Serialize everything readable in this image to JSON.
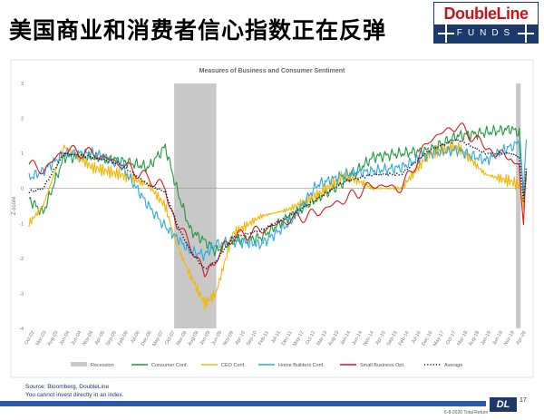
{
  "slide": {
    "title": "美国商业和消费者信心指数正在反弹",
    "source": "Source: Bloomberg, DoubleLine",
    "disclaimer": "You cannot invest directly in an index.",
    "footer_text": "6-8-2020 Total Return",
    "page": "17"
  },
  "logo": {
    "top": "DoubleLine",
    "bottom": "FUNDS"
  },
  "colors": {
    "recession": "#c8c8c8",
    "consumer": "#1e9a3c",
    "ceo": "#f2b705",
    "homebuilders": "#2aa9e0",
    "smallbiz": "#d7191c",
    "average": "#1a1a3a"
  },
  "chart_data": {
    "type": "line",
    "title": "Measures of Business and Consumer Sentiment",
    "ylabel": "Z-score",
    "xlabel": "",
    "ylim": [
      -4,
      3
    ],
    "yticks": [
      3,
      2,
      1,
      0,
      -1,
      -2,
      -3,
      -4
    ],
    "xlim": [
      2002.75,
      2020.5
    ],
    "grid": false,
    "legend_position": "bottom",
    "xtick_labels": [
      "Oct-02",
      "Mar-03",
      "Aug-03",
      "Jan-04",
      "Jun-04",
      "Nov-04",
      "Apr-05",
      "Sep-05",
      "Feb-06",
      "Jul-06",
      "Dec-06",
      "May-07",
      "Oct-07",
      "Mar-08",
      "Aug-08",
      "Jan-09",
      "Jun-09",
      "Nov-09",
      "Apr-10",
      "Sep-10",
      "Feb-11",
      "Jul-11",
      "Dec-11",
      "May-12",
      "Oct-12",
      "Mar-13",
      "Aug-13",
      "Jan-14",
      "Jun-14",
      "Nov-14",
      "Apr-15",
      "Sep-15",
      "Feb-16",
      "Jul-16",
      "Dec-16",
      "May-17",
      "Oct-17",
      "Mar-18",
      "Aug-18",
      "Jan-19",
      "Jun-19",
      "Nov-19",
      "Apr-20"
    ],
    "recessions": [
      [
        "2007-12",
        "2009-06"
      ],
      [
        "2020-02",
        "2020-04"
      ]
    ],
    "series": [
      {
        "name": "Recession"
      },
      {
        "name": "Consumer Conf.",
        "x": [
          2002.75,
          2003.25,
          2004.0,
          2005.0,
          2006.0,
          2007.0,
          2007.6,
          2008.0,
          2008.5,
          2009.0,
          2009.4,
          2010.0,
          2011.0,
          2012.0,
          2013.0,
          2014.0,
          2015.0,
          2016.0,
          2017.0,
          2018.0,
          2019.0,
          2019.9,
          2020.2,
          2020.35,
          2020.45
        ],
        "values": [
          -0.3,
          -0.7,
          0.9,
          0.9,
          0.8,
          0.6,
          1.2,
          0.0,
          -1.2,
          -1.5,
          -1.8,
          -1.5,
          -1.4,
          -0.8,
          -0.3,
          0.2,
          0.9,
          1.0,
          1.1,
          1.5,
          1.6,
          1.7,
          1.6,
          -0.2,
          0.5
        ]
      },
      {
        "name": "CEO Conf.",
        "x": [
          2002.75,
          2003.25,
          2004.0,
          2005.0,
          2006.0,
          2007.0,
          2007.6,
          2008.0,
          2008.5,
          2009.0,
          2009.4,
          2010.0,
          2011.0,
          2012.0,
          2013.0,
          2014.0,
          2015.0,
          2016.0,
          2017.0,
          2018.0,
          2019.0,
          2019.9,
          2020.2,
          2020.35,
          2020.45
        ],
        "values": [
          -1.0,
          -0.5,
          1.2,
          0.6,
          0.4,
          0.1,
          -0.5,
          -1.6,
          -2.5,
          -3.3,
          -3.0,
          -1.3,
          -0.8,
          -0.6,
          -0.2,
          0.4,
          0.0,
          0.0,
          1.0,
          1.2,
          0.4,
          0.2,
          0.1,
          -0.5,
          0.3
        ]
      },
      {
        "name": "Home Builders Conf.",
        "x": [
          2002.75,
          2003.25,
          2004.0,
          2005.0,
          2006.0,
          2007.0,
          2007.6,
          2008.0,
          2008.5,
          2009.0,
          2009.4,
          2010.0,
          2011.0,
          2012.0,
          2013.0,
          2014.0,
          2015.0,
          2016.0,
          2017.0,
          2018.0,
          2019.0,
          2019.9,
          2020.2,
          2020.35,
          2020.45
        ],
        "values": [
          0.3,
          0.5,
          1.0,
          1.0,
          0.7,
          -0.5,
          -1.1,
          -1.4,
          -1.8,
          -1.9,
          -1.6,
          -1.5,
          -1.6,
          -1.0,
          0.1,
          0.4,
          0.5,
          0.6,
          1.0,
          1.1,
          0.8,
          1.2,
          1.3,
          0.0,
          1.4
        ]
      },
      {
        "name": "Small Business Opt.",
        "x": [
          2002.75,
          2003.25,
          2004.0,
          2005.0,
          2006.0,
          2007.0,
          2007.6,
          2008.0,
          2008.5,
          2009.0,
          2009.4,
          2010.0,
          2011.0,
          2012.0,
          2013.0,
          2014.0,
          2015.0,
          2016.0,
          2017.0,
          2018.0,
          2019.0,
          2019.9,
          2020.2,
          2020.35,
          2020.45
        ],
        "values": [
          0.7,
          0.5,
          1.1,
          1.0,
          0.7,
          0.3,
          0.0,
          -1.0,
          -1.6,
          -2.5,
          -2.0,
          -1.4,
          -1.2,
          -0.9,
          -0.7,
          -0.3,
          0.1,
          0.0,
          1.4,
          1.8,
          1.2,
          0.8,
          0.6,
          -1.1,
          0.5
        ]
      },
      {
        "name": "Average",
        "x": [
          2002.75,
          2003.25,
          2004.0,
          2005.0,
          2006.0,
          2007.0,
          2007.6,
          2008.0,
          2008.5,
          2009.0,
          2009.4,
          2010.0,
          2011.0,
          2012.0,
          2013.0,
          2014.0,
          2015.0,
          2016.0,
          2017.0,
          2018.0,
          2019.0,
          2019.9,
          2020.2,
          2020.35,
          2020.45
        ],
        "values": [
          -0.1,
          0.0,
          1.0,
          0.9,
          0.7,
          0.1,
          -0.1,
          -1.0,
          -1.8,
          -2.3,
          -2.1,
          -1.4,
          -1.2,
          -0.8,
          -0.3,
          0.2,
          0.4,
          0.4,
          1.1,
          1.4,
          1.0,
          1.0,
          0.9,
          -0.4,
          0.6
        ]
      }
    ]
  }
}
